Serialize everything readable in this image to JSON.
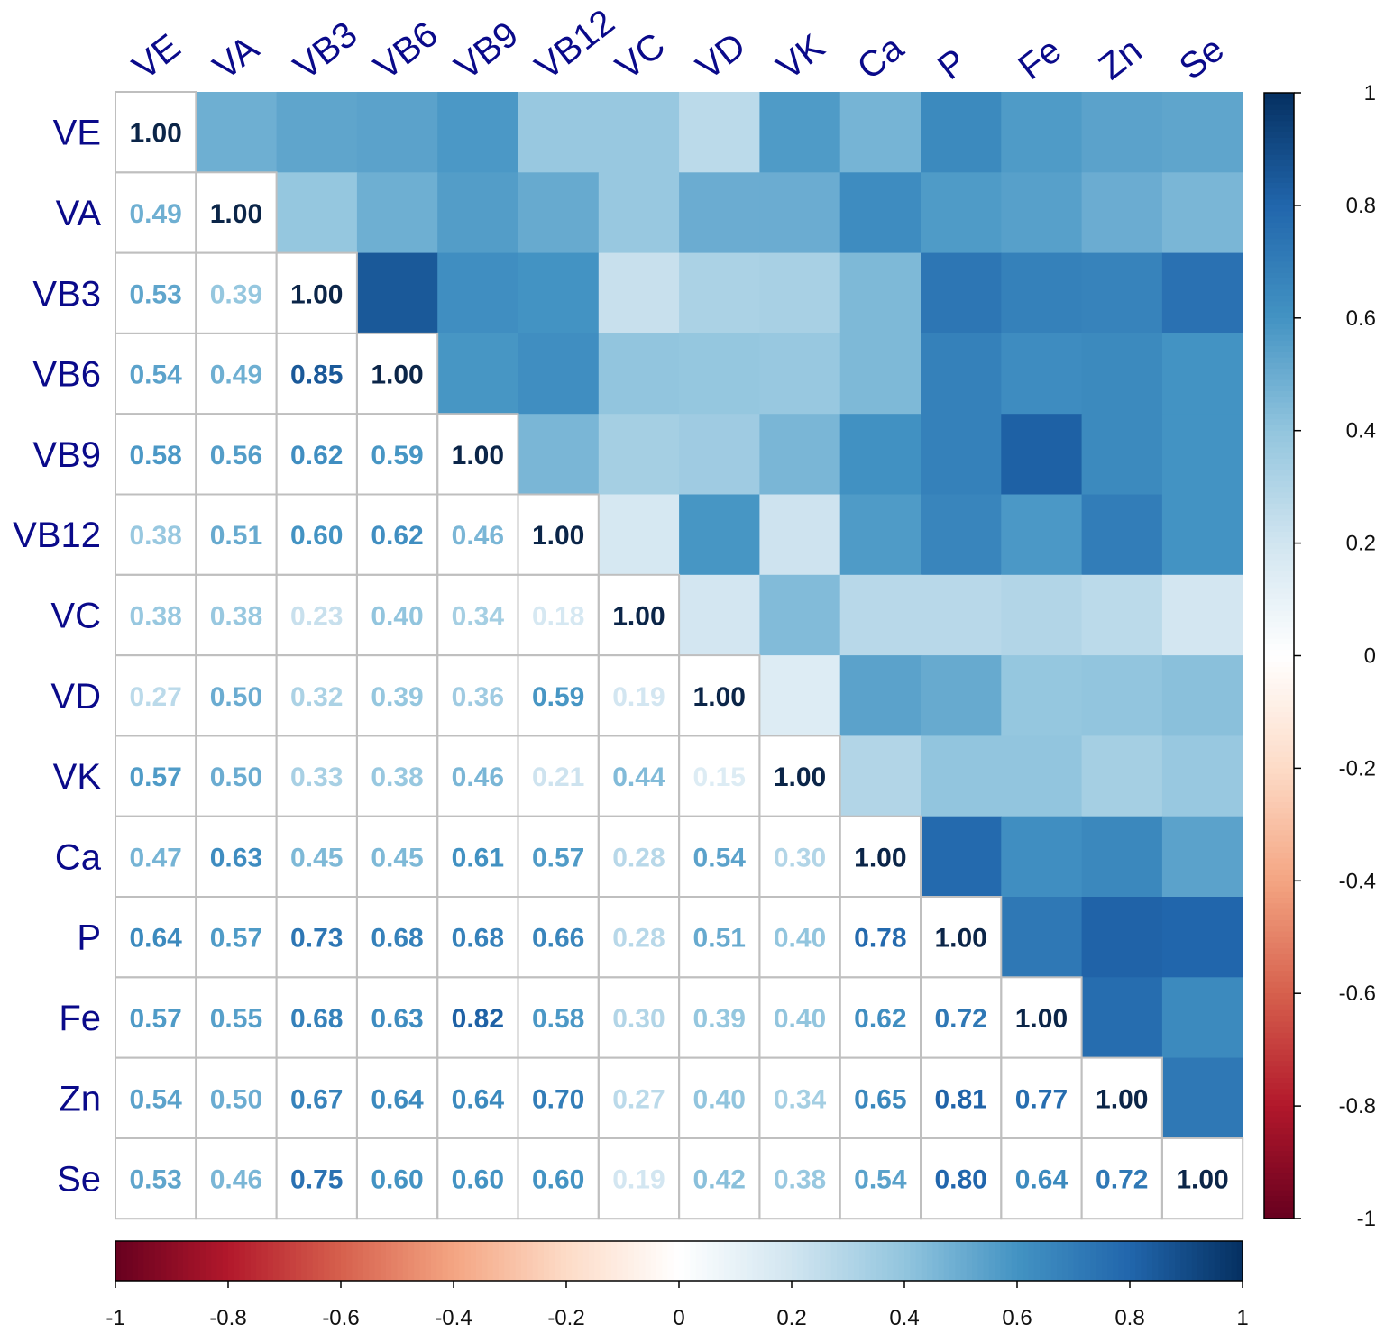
{
  "chart_data": {
    "type": "heatmap",
    "title": "",
    "variables": [
      "VE",
      "VA",
      "VB3",
      "VB6",
      "VB9",
      "VB12",
      "VC",
      "VD",
      "VK",
      "Ca",
      "P",
      "Fe",
      "Zn",
      "Se"
    ],
    "matrix": [
      [
        1.0,
        0.49,
        0.53,
        0.54,
        0.58,
        0.38,
        0.38,
        0.27,
        0.57,
        0.47,
        0.64,
        0.57,
        0.54,
        0.53
      ],
      [
        0.49,
        1.0,
        0.39,
        0.49,
        0.56,
        0.51,
        0.38,
        0.5,
        0.5,
        0.63,
        0.57,
        0.55,
        0.5,
        0.46
      ],
      [
        0.53,
        0.39,
        1.0,
        0.85,
        0.62,
        0.6,
        0.23,
        0.32,
        0.33,
        0.45,
        0.73,
        0.68,
        0.67,
        0.75
      ],
      [
        0.54,
        0.49,
        0.85,
        1.0,
        0.59,
        0.62,
        0.4,
        0.39,
        0.38,
        0.45,
        0.68,
        0.63,
        0.64,
        0.6
      ],
      [
        0.58,
        0.56,
        0.62,
        0.59,
        1.0,
        0.46,
        0.34,
        0.36,
        0.46,
        0.61,
        0.68,
        0.82,
        0.64,
        0.6
      ],
      [
        0.38,
        0.51,
        0.6,
        0.62,
        0.46,
        1.0,
        0.18,
        0.59,
        0.21,
        0.57,
        0.66,
        0.58,
        0.7,
        0.6
      ],
      [
        0.38,
        0.38,
        0.23,
        0.4,
        0.34,
        0.18,
        1.0,
        0.19,
        0.44,
        0.28,
        0.28,
        0.3,
        0.27,
        0.19
      ],
      [
        0.27,
        0.5,
        0.32,
        0.39,
        0.36,
        0.59,
        0.19,
        1.0,
        0.15,
        0.54,
        0.51,
        0.39,
        0.4,
        0.42
      ],
      [
        0.57,
        0.5,
        0.33,
        0.38,
        0.46,
        0.21,
        0.44,
        0.15,
        1.0,
        0.3,
        0.4,
        0.4,
        0.34,
        0.38
      ],
      [
        0.47,
        0.63,
        0.45,
        0.45,
        0.61,
        0.57,
        0.28,
        0.54,
        0.3,
        1.0,
        0.78,
        0.62,
        0.65,
        0.54
      ],
      [
        0.64,
        0.57,
        0.73,
        0.68,
        0.68,
        0.66,
        0.28,
        0.51,
        0.4,
        0.78,
        1.0,
        0.72,
        0.81,
        0.8
      ],
      [
        0.57,
        0.55,
        0.68,
        0.63,
        0.82,
        0.58,
        0.3,
        0.39,
        0.4,
        0.62,
        0.72,
        1.0,
        0.77,
        0.64
      ],
      [
        0.54,
        0.5,
        0.67,
        0.64,
        0.64,
        0.7,
        0.27,
        0.4,
        0.34,
        0.65,
        0.81,
        0.77,
        1.0,
        0.72
      ],
      [
        0.53,
        0.46,
        0.75,
        0.6,
        0.6,
        0.6,
        0.19,
        0.42,
        0.38,
        0.54,
        0.8,
        0.64,
        0.72,
        1.0
      ]
    ],
    "upper_triangle": "colored squares",
    "lower_triangle": "numbers",
    "color_range": [
      -1,
      1
    ],
    "colorbar_right_ticks": [
      "1",
      "0.8",
      "0.6",
      "0.4",
      "0.2",
      "0",
      "-0.2",
      "-0.4",
      "-0.6",
      "-0.8",
      "-1"
    ],
    "colorbar_bottom_ticks": [
      "-1",
      "-0.8",
      "-0.6",
      "-0.4",
      "-0.2",
      "0",
      "0.2",
      "0.4",
      "0.6",
      "0.8",
      "1"
    ],
    "palette": [
      "#67001F",
      "#B2182B",
      "#D6604D",
      "#F4A582",
      "#FDDBC7",
      "#FFFFFF",
      "#D1E5F0",
      "#92C5DE",
      "#4393C3",
      "#2166AC",
      "#053061"
    ],
    "label_color": "#0a0a8a",
    "grid_color": "#bfbfbf"
  }
}
